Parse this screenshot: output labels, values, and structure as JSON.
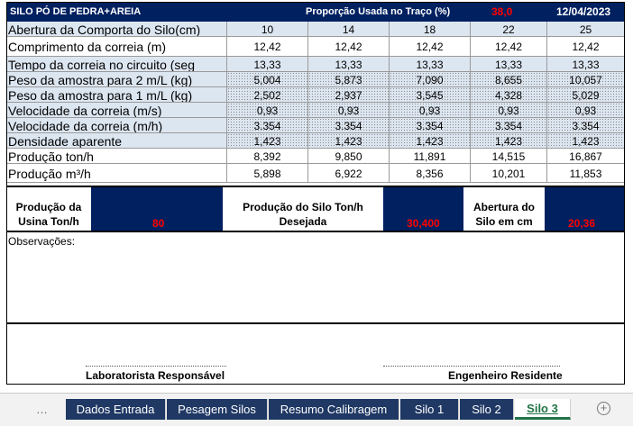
{
  "header": {
    "title": "SILO  PÓ DE PEDRA+AREIA",
    "proportion_label": "Proporção Usada no Traço (%)",
    "proportion_value": "38,0",
    "date": "12/04/2023"
  },
  "table": {
    "rows": [
      {
        "label": "Abertura da Comporta do Silo(cm)",
        "values": [
          "10",
          "14",
          "18",
          "22",
          "25"
        ]
      },
      {
        "label": "Comprimento da correia (m)",
        "values": [
          "12,42",
          "12,42",
          "12,42",
          "12,42",
          "12,42"
        ]
      },
      {
        "label": "Tempo da correia no circuito (seg",
        "values": [
          "13,33",
          "13,33",
          "13,33",
          "13,33",
          "13,33"
        ]
      },
      {
        "label": "Peso da amostra para 2 m/L (kg)",
        "values": [
          "5,004",
          "5,873",
          "7,090",
          "8,655",
          "10,057"
        ]
      },
      {
        "label": "Peso da amostra para 1 m/L (kg)",
        "values": [
          "2,502",
          "2,937",
          "3,545",
          "4,328",
          "5,029"
        ]
      },
      {
        "label": "Velocidade da correia (m/s)",
        "values": [
          "0,93",
          "0,93",
          "0,93",
          "0,93",
          "0,93"
        ]
      },
      {
        "label": "Velocidade da correia (m/h)",
        "values": [
          "3.354",
          "3.354",
          "3.354",
          "3.354",
          "3.354"
        ]
      },
      {
        "label": "Densidade aparente",
        "values": [
          "1,423",
          "1,423",
          "1,423",
          "1,423",
          "1,423"
        ]
      },
      {
        "label": "Produção ton/h",
        "values": [
          "8,392",
          "9,850",
          "11,891",
          "14,515",
          "16,867"
        ]
      },
      {
        "label": "Produção m³/h",
        "values": [
          "5,898",
          "6,922",
          "8,356",
          "10,201",
          "11,853"
        ]
      }
    ]
  },
  "summary": {
    "usina_label_line1": "Produção da",
    "usina_label_line2": "Usina Ton/h",
    "usina_value": "80",
    "desejada_label_line1": "Produção do Silo Ton/h",
    "desejada_label_line2": "Desejada",
    "desejada_value": "30,400",
    "abertura_label_line1": "Abertura do",
    "abertura_label_line2": "Silo em cm",
    "abertura_value": "20,36"
  },
  "observations_label": "Observações:",
  "signatures": {
    "lab": "Laboratorista Responsável",
    "engineer": "Engenheiro Residente"
  },
  "tabs": [
    {
      "label": "Dados Entrada"
    },
    {
      "label": "Pesagem Silos"
    },
    {
      "label": "Resumo Calibragem"
    },
    {
      "label": "Silo 1"
    },
    {
      "label": "Silo 2"
    },
    {
      "label": "Silo 3"
    }
  ],
  "icons": {
    "add_sheet": "plus-circle-icon",
    "scroll_left": "ellipsis-icon"
  },
  "colors": {
    "navy": "#002060",
    "highlight": "#ff0000",
    "stripe": "#dce6f1",
    "active_tab": "#217346"
  }
}
